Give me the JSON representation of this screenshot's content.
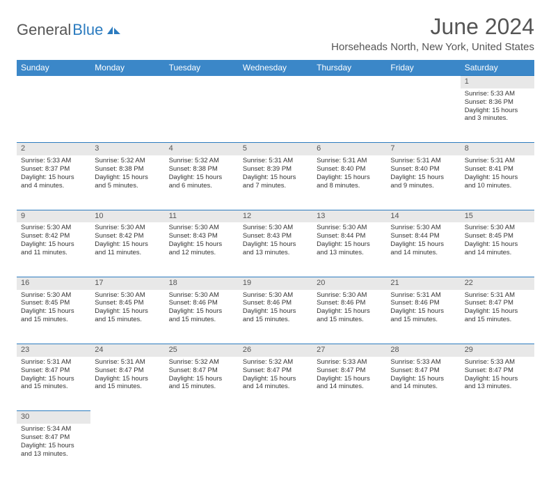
{
  "brand": {
    "part1": "General",
    "part2": "Blue"
  },
  "title": "June 2024",
  "location": "Horseheads North, New York, United States",
  "colors": {
    "header_bg": "#3b87c8",
    "header_text": "#ffffff",
    "daynum_bg": "#e8e8e8",
    "daynum_border": "#2b7bbf",
    "body_text": "#333333",
    "title_text": "#555555",
    "brand_gray": "#555555",
    "brand_blue": "#2b7bbf",
    "background": "#ffffff"
  },
  "typography": {
    "title_fontsize": 32,
    "location_fontsize": 15,
    "header_fontsize": 12,
    "daynum_fontsize": 11,
    "cell_fontsize": 9.5
  },
  "weekdays": [
    "Sunday",
    "Monday",
    "Tuesday",
    "Wednesday",
    "Thursday",
    "Friday",
    "Saturday"
  ],
  "weeks": [
    [
      null,
      null,
      null,
      null,
      null,
      null,
      {
        "n": "1",
        "sunrise": "Sunrise: 5:33 AM",
        "sunset": "Sunset: 8:36 PM",
        "daylight": "Daylight: 15 hours and 3 minutes."
      }
    ],
    [
      {
        "n": "2",
        "sunrise": "Sunrise: 5:33 AM",
        "sunset": "Sunset: 8:37 PM",
        "daylight": "Daylight: 15 hours and 4 minutes."
      },
      {
        "n": "3",
        "sunrise": "Sunrise: 5:32 AM",
        "sunset": "Sunset: 8:38 PM",
        "daylight": "Daylight: 15 hours and 5 minutes."
      },
      {
        "n": "4",
        "sunrise": "Sunrise: 5:32 AM",
        "sunset": "Sunset: 8:38 PM",
        "daylight": "Daylight: 15 hours and 6 minutes."
      },
      {
        "n": "5",
        "sunrise": "Sunrise: 5:31 AM",
        "sunset": "Sunset: 8:39 PM",
        "daylight": "Daylight: 15 hours and 7 minutes."
      },
      {
        "n": "6",
        "sunrise": "Sunrise: 5:31 AM",
        "sunset": "Sunset: 8:40 PM",
        "daylight": "Daylight: 15 hours and 8 minutes."
      },
      {
        "n": "7",
        "sunrise": "Sunrise: 5:31 AM",
        "sunset": "Sunset: 8:40 PM",
        "daylight": "Daylight: 15 hours and 9 minutes."
      },
      {
        "n": "8",
        "sunrise": "Sunrise: 5:31 AM",
        "sunset": "Sunset: 8:41 PM",
        "daylight": "Daylight: 15 hours and 10 minutes."
      }
    ],
    [
      {
        "n": "9",
        "sunrise": "Sunrise: 5:30 AM",
        "sunset": "Sunset: 8:42 PM",
        "daylight": "Daylight: 15 hours and 11 minutes."
      },
      {
        "n": "10",
        "sunrise": "Sunrise: 5:30 AM",
        "sunset": "Sunset: 8:42 PM",
        "daylight": "Daylight: 15 hours and 11 minutes."
      },
      {
        "n": "11",
        "sunrise": "Sunrise: 5:30 AM",
        "sunset": "Sunset: 8:43 PM",
        "daylight": "Daylight: 15 hours and 12 minutes."
      },
      {
        "n": "12",
        "sunrise": "Sunrise: 5:30 AM",
        "sunset": "Sunset: 8:43 PM",
        "daylight": "Daylight: 15 hours and 13 minutes."
      },
      {
        "n": "13",
        "sunrise": "Sunrise: 5:30 AM",
        "sunset": "Sunset: 8:44 PM",
        "daylight": "Daylight: 15 hours and 13 minutes."
      },
      {
        "n": "14",
        "sunrise": "Sunrise: 5:30 AM",
        "sunset": "Sunset: 8:44 PM",
        "daylight": "Daylight: 15 hours and 14 minutes."
      },
      {
        "n": "15",
        "sunrise": "Sunrise: 5:30 AM",
        "sunset": "Sunset: 8:45 PM",
        "daylight": "Daylight: 15 hours and 14 minutes."
      }
    ],
    [
      {
        "n": "16",
        "sunrise": "Sunrise: 5:30 AM",
        "sunset": "Sunset: 8:45 PM",
        "daylight": "Daylight: 15 hours and 15 minutes."
      },
      {
        "n": "17",
        "sunrise": "Sunrise: 5:30 AM",
        "sunset": "Sunset: 8:45 PM",
        "daylight": "Daylight: 15 hours and 15 minutes."
      },
      {
        "n": "18",
        "sunrise": "Sunrise: 5:30 AM",
        "sunset": "Sunset: 8:46 PM",
        "daylight": "Daylight: 15 hours and 15 minutes."
      },
      {
        "n": "19",
        "sunrise": "Sunrise: 5:30 AM",
        "sunset": "Sunset: 8:46 PM",
        "daylight": "Daylight: 15 hours and 15 minutes."
      },
      {
        "n": "20",
        "sunrise": "Sunrise: 5:30 AM",
        "sunset": "Sunset: 8:46 PM",
        "daylight": "Daylight: 15 hours and 15 minutes."
      },
      {
        "n": "21",
        "sunrise": "Sunrise: 5:31 AM",
        "sunset": "Sunset: 8:46 PM",
        "daylight": "Daylight: 15 hours and 15 minutes."
      },
      {
        "n": "22",
        "sunrise": "Sunrise: 5:31 AM",
        "sunset": "Sunset: 8:47 PM",
        "daylight": "Daylight: 15 hours and 15 minutes."
      }
    ],
    [
      {
        "n": "23",
        "sunrise": "Sunrise: 5:31 AM",
        "sunset": "Sunset: 8:47 PM",
        "daylight": "Daylight: 15 hours and 15 minutes."
      },
      {
        "n": "24",
        "sunrise": "Sunrise: 5:31 AM",
        "sunset": "Sunset: 8:47 PM",
        "daylight": "Daylight: 15 hours and 15 minutes."
      },
      {
        "n": "25",
        "sunrise": "Sunrise: 5:32 AM",
        "sunset": "Sunset: 8:47 PM",
        "daylight": "Daylight: 15 hours and 15 minutes."
      },
      {
        "n": "26",
        "sunrise": "Sunrise: 5:32 AM",
        "sunset": "Sunset: 8:47 PM",
        "daylight": "Daylight: 15 hours and 14 minutes."
      },
      {
        "n": "27",
        "sunrise": "Sunrise: 5:33 AM",
        "sunset": "Sunset: 8:47 PM",
        "daylight": "Daylight: 15 hours and 14 minutes."
      },
      {
        "n": "28",
        "sunrise": "Sunrise: 5:33 AM",
        "sunset": "Sunset: 8:47 PM",
        "daylight": "Daylight: 15 hours and 14 minutes."
      },
      {
        "n": "29",
        "sunrise": "Sunrise: 5:33 AM",
        "sunset": "Sunset: 8:47 PM",
        "daylight": "Daylight: 15 hours and 13 minutes."
      }
    ],
    [
      {
        "n": "30",
        "sunrise": "Sunrise: 5:34 AM",
        "sunset": "Sunset: 8:47 PM",
        "daylight": "Daylight: 15 hours and 13 minutes."
      },
      null,
      null,
      null,
      null,
      null,
      null
    ]
  ]
}
